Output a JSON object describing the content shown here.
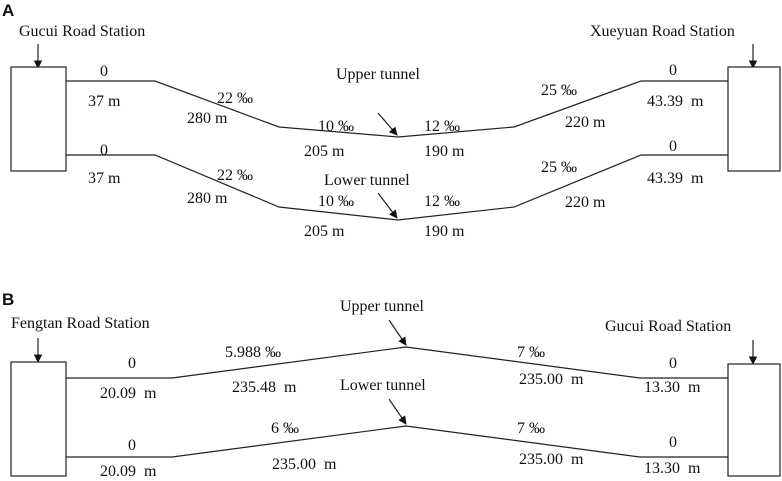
{
  "panels": [
    {
      "label": "A",
      "left_station": "Gucui Road Station",
      "right_station": "Xueyuan Road Station",
      "upper": {
        "name": "Upper tunnel",
        "segments": [
          {
            "grade": "0",
            "length": "37 m"
          },
          {
            "grade": "22 ‰",
            "length": "280 m"
          },
          {
            "grade": "10 ‰",
            "length": "205 m"
          },
          {
            "grade": "12 ‰",
            "length": "190 m"
          },
          {
            "grade": "25 ‰",
            "length": "220 m"
          },
          {
            "grade": "0",
            "length": "43.39  m"
          }
        ]
      },
      "lower": {
        "name": "Lower tunnel",
        "segments": [
          {
            "grade": "0",
            "length": "37 m"
          },
          {
            "grade": "22 ‰",
            "length": "280 m"
          },
          {
            "grade": "10 ‰",
            "length": "205 m"
          },
          {
            "grade": "12 ‰",
            "length": "190 m"
          },
          {
            "grade": "25 ‰",
            "length": "220 m"
          },
          {
            "grade": "0",
            "length": "43.39  m"
          }
        ]
      }
    },
    {
      "label": "B",
      "left_station": "Fengtan Road Station",
      "right_station": "Gucui Road Station",
      "upper": {
        "name": "Upper tunnel",
        "segments": [
          {
            "grade": "0",
            "length": "20.09  m"
          },
          {
            "grade": "5.988 ‰",
            "length": "235.48  m"
          },
          {
            "grade": "7 ‰",
            "length": "235.00  m"
          },
          {
            "grade": "0",
            "length": "13.30  m"
          }
        ]
      },
      "lower": {
        "name": "Lower tunnel",
        "segments": [
          {
            "grade": "0",
            "length": "20.09  m"
          },
          {
            "grade": "6 ‰",
            "length": "235.00  m"
          },
          {
            "grade": "7 ‰",
            "length": "235.00  m"
          },
          {
            "grade": "0",
            "length": "13.30  m"
          }
        ]
      }
    }
  ]
}
